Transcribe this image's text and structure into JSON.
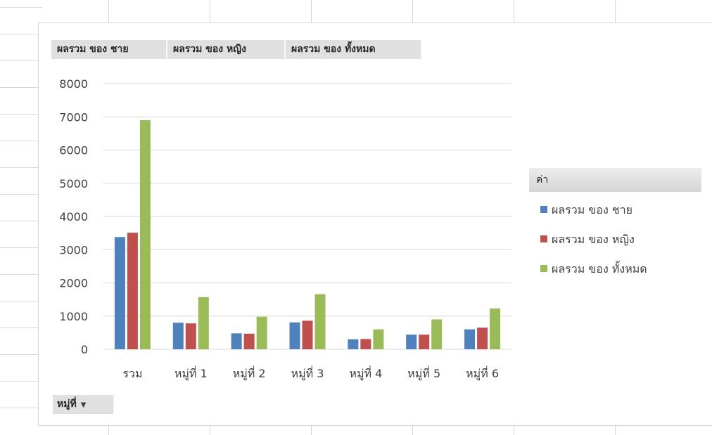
{
  "chart_data": {
    "type": "bar",
    "categories": [
      "รวม",
      "หมู่ที่ 1",
      "หมู่ที่ 2",
      "หมู่ที่ 3",
      "หมู่ที่ 4",
      "หมู่ที่ 5",
      "หมู่ที่ 6"
    ],
    "series": [
      {
        "name": "ผลรวม ของ ชาย",
        "color": "#4f81bd",
        "values": [
          3380,
          800,
          480,
          810,
          300,
          440,
          600
        ]
      },
      {
        "name": "ผลรวม ของ หญิง",
        "color": "#c0504d",
        "values": [
          3510,
          780,
          470,
          860,
          310,
          440,
          650
        ]
      },
      {
        "name": "ผลรวม ของ ทั้งหมด",
        "color": "#9bbb59",
        "values": [
          6900,
          1570,
          980,
          1660,
          600,
          900,
          1230
        ]
      }
    ],
    "ylim": [
      0,
      8000
    ],
    "yticks": [
      0,
      1000,
      2000,
      3000,
      4000,
      5000,
      6000,
      7000,
      8000
    ],
    "grid": true,
    "legend_position": "right",
    "legend_title": "ค่า"
  },
  "field_buttons": {
    "male": "ผลรวม ของ ชาย",
    "female": "ผลรวม ของ หญิง",
    "total": "ผลรวม ของ ทั้งหมด",
    "axis_field": "หมู่ที่",
    "axis_field_arrow": "▼"
  }
}
